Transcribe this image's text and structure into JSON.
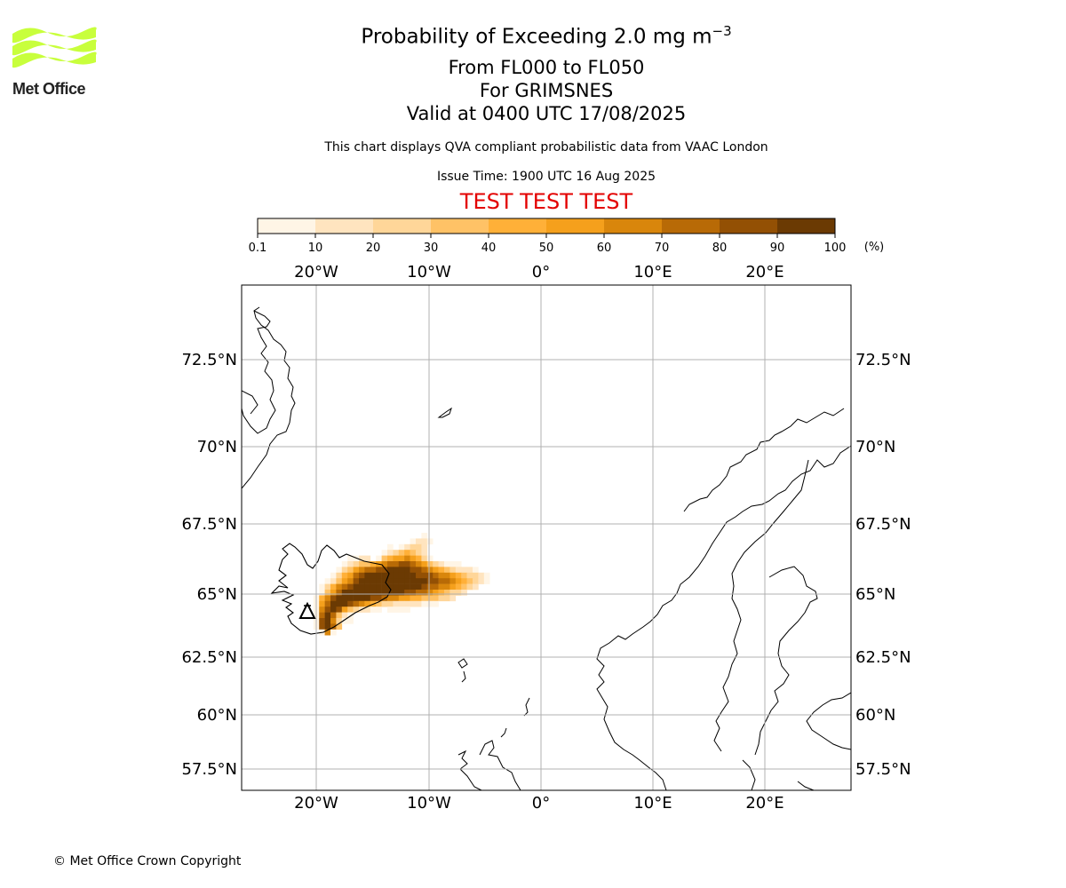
{
  "logo": {
    "text": "Met Office",
    "icon": "met-office-wave-logo",
    "color": "#c8ff3c"
  },
  "title": {
    "line1_prefix": "Probability of Exceeding 2.0 mg m",
    "line1_exponent": "−3",
    "line2": "From FL000 to FL050",
    "line3": "For GRIMSNES",
    "line4": "Valid at 0400 UTC 17/08/2025"
  },
  "disclaimer": "This chart displays QVA compliant probabilistic data from VAAC London",
  "issue_time": "Issue Time: 1900 UTC 16 Aug 2025",
  "test_banner": "TEST TEST TEST",
  "test_color": "#e30000",
  "colorbar": {
    "ticks": [
      "0.1",
      "10",
      "20",
      "30",
      "40",
      "50",
      "60",
      "70",
      "80",
      "90",
      "100"
    ],
    "unit": "(%)",
    "colors": [
      "#fff5e6",
      "#ffe4bf",
      "#ffd699",
      "#ffc266",
      "#ffb038",
      "#f5a01c",
      "#d9860c",
      "#b86a06",
      "#935004",
      "#6b3a03"
    ]
  },
  "map": {
    "lon_labels": [
      "20°W",
      "10°W",
      "0°",
      "10°E",
      "20°E"
    ],
    "lat_labels": [
      "72.5°N",
      "70°N",
      "67.5°N",
      "65°N",
      "62.5°N",
      "60°N",
      "57.5°N"
    ],
    "volcano": "GRIMSNES",
    "volcano_icon": "volcano-triangle-icon"
  },
  "copyright": "© Met Office Crown Copyright"
}
